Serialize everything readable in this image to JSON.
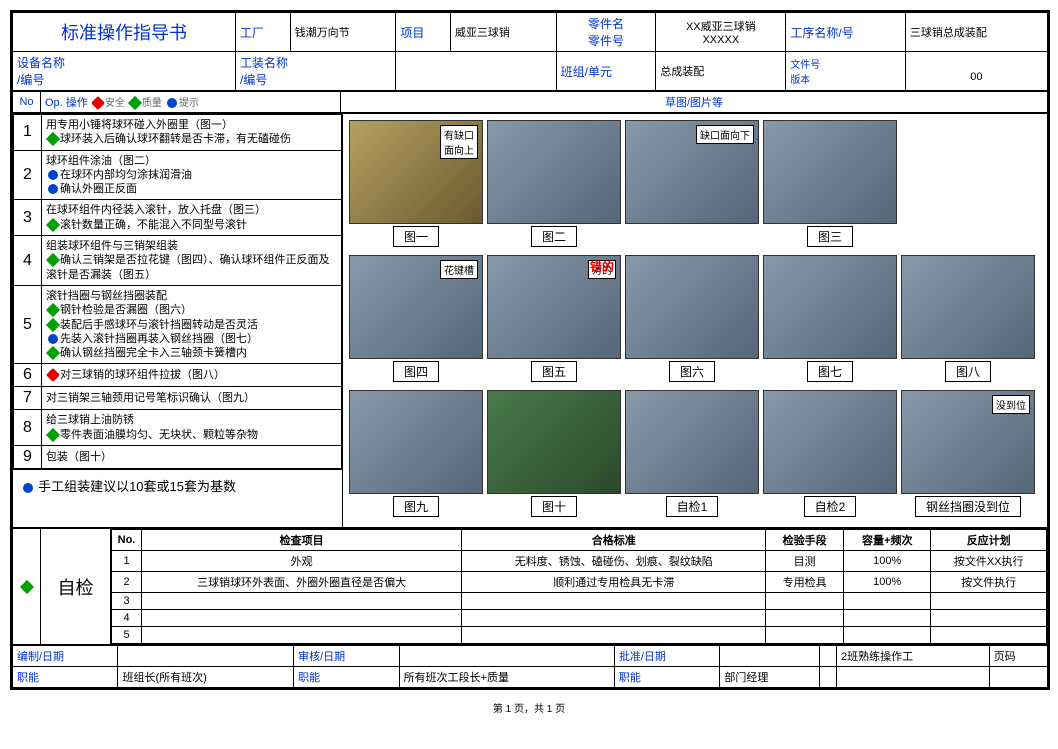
{
  "header": {
    "title": "标准操作指导书",
    "factory_label": "工厂",
    "factory_value": "钱潮万向节",
    "project_label": "项目",
    "project_value": "威亚三球销",
    "partname_label": "零件名",
    "partno_label": "零件号",
    "partname_value": "XX威亚三球销",
    "partno_value": "XXXXX",
    "process_label": "工序名称/号",
    "process_value": "三球销总成装配",
    "equip_label": "设备名称\n/编号",
    "fixture_label": "工装名称\n/编号",
    "team_label": "班组/单元",
    "team_value": "总成装配",
    "docno_label": "文件号",
    "rev_label": "版本",
    "rev_value": "00"
  },
  "legend": {
    "no": "No",
    "op": "Op. 操作",
    "safety": "安全",
    "quality": "质量",
    "tip": "提示",
    "drawing": "草图/图片等"
  },
  "ops": [
    {
      "num": "1",
      "lines": [
        {
          "icon": "",
          "text": "用专用小锤将球环碰入外圈里（图一）"
        },
        {
          "icon": "green",
          "text": "球环装入后确认球环翻转是否卡滞，有无磕碰伤"
        }
      ]
    },
    {
      "num": "2",
      "lines": [
        {
          "icon": "",
          "text": "球环组件涂油（图二）"
        },
        {
          "icon": "blue",
          "text": "在球环内部均匀涂抹润滑油"
        },
        {
          "icon": "blue",
          "text": "确认外圈正反面"
        }
      ]
    },
    {
      "num": "3",
      "lines": [
        {
          "icon": "",
          "text": "在球环组件内径装入滚针，放入托盘（图三）"
        },
        {
          "icon": "green",
          "text": "滚针数量正确，不能混入不同型号滚针"
        }
      ]
    },
    {
      "num": "4",
      "lines": [
        {
          "icon": "",
          "text": "组装球环组件与三销架组装"
        },
        {
          "icon": "green",
          "text": "确认三销架是否拉花键（图四）、确认球环组件正反面及滚针是否漏装（图五）"
        }
      ]
    },
    {
      "num": "5",
      "lines": [
        {
          "icon": "",
          "text": "滚针挡圈与钢丝挡圈装配"
        },
        {
          "icon": "green",
          "text": "钢针检验是否漏圈（图六）"
        },
        {
          "icon": "green",
          "text": "装配后手感球环与滚针挡圈转动是否灵活"
        },
        {
          "icon": "blue",
          "text": "先装入滚针挡圈再装入钢丝挡圈（图七）"
        },
        {
          "icon": "green",
          "text": "确认钢丝挡圈完全卡入三轴颈卡簧槽内"
        }
      ]
    },
    {
      "num": "6",
      "lines": [
        {
          "icon": "red",
          "text": "对三球销的球环组件拉拔（图八）"
        }
      ]
    },
    {
      "num": "7",
      "lines": [
        {
          "icon": "",
          "text": "对三销架三轴颈用记号笔标识确认（图九）"
        }
      ]
    },
    {
      "num": "8",
      "lines": [
        {
          "icon": "",
          "text": "给三球销上油防锈"
        },
        {
          "icon": "green",
          "text": "零件表面油膜均匀、无块状、颗粒等杂物"
        }
      ]
    },
    {
      "num": "9",
      "lines": [
        {
          "icon": "",
          "text": "包装（图十）"
        }
      ]
    }
  ],
  "note": "手工组装建议以10套或15套为基数",
  "figs": {
    "row1": [
      {
        "cap": "图一",
        "ann": "有缺口\n面向上",
        "bg": "imgph2"
      },
      {
        "cap": "图二",
        "bg": "imgph"
      },
      {
        "cap": "",
        "ann": "缺口面向下",
        "bg": "imgph"
      },
      {
        "cap": "图三",
        "bg": "imgph"
      }
    ],
    "row2": [
      {
        "cap": "图四",
        "ann": "花键槽",
        "bg": "imgph"
      },
      {
        "cap": "图五",
        "ann": "对的",
        "ann2": "错的",
        "bg": "imgph"
      },
      {
        "cap": "图六",
        "bg": "imgph"
      },
      {
        "cap": "图七",
        "bg": "imgph"
      },
      {
        "cap": "图八",
        "bg": "imgph"
      }
    ],
    "row3": [
      {
        "cap": "图九",
        "bg": "imgph"
      },
      {
        "cap": "图十",
        "bg": "imgph3"
      },
      {
        "cap": "自检1",
        "bg": "imgph"
      },
      {
        "cap": "自检2",
        "bg": "imgph"
      },
      {
        "cap": "钢丝挡圈没到位",
        "ann": "没到位",
        "bg": "imgph"
      }
    ]
  },
  "inspection": {
    "title": "自检",
    "head": [
      "No.",
      "检查项目",
      "合格标准",
      "检验手段",
      "容量+频次",
      "反应计划"
    ],
    "rows": [
      [
        "1",
        "外观",
        "无料度、锈蚀、磕碰伤、划痕、裂纹缺陷",
        "目测",
        "100%",
        "按文件XX执行"
      ],
      [
        "2",
        "三球销球环外表面、外圈外圈直径是否偏大",
        "顺利通过专用检具无卡滞",
        "专用检具",
        "100%",
        "按文件执行"
      ],
      [
        "3",
        "",
        "",
        "",
        "",
        ""
      ],
      [
        "4",
        "",
        "",
        "",
        "",
        ""
      ],
      [
        "5",
        "",
        "",
        "",
        "",
        ""
      ]
    ]
  },
  "footer": {
    "r1": [
      "编制/日期",
      "",
      "审核/日期",
      "",
      "批准/日期",
      "",
      "",
      "2班熟练操作工",
      "页码"
    ],
    "r2": [
      "职能",
      "班组长(所有班次)",
      "职能",
      "所有班次工段长+质量",
      "职能",
      "部门经理",
      "",
      "",
      ""
    ]
  },
  "pagenum": "第 1 页，共 1 页"
}
